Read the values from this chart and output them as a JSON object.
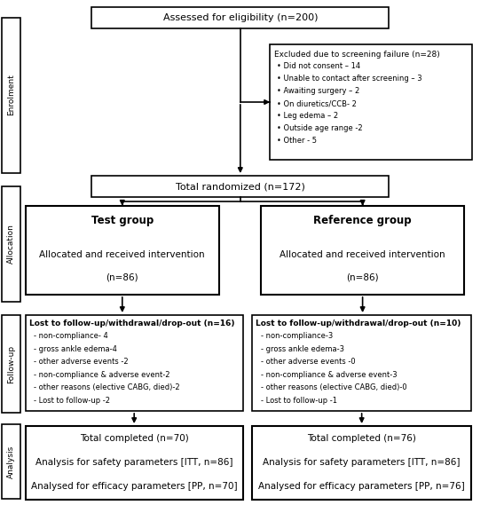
{
  "enrolment_label": "Enrolment",
  "allocation_label": "Allocation",
  "followup_label": "Follow-up",
  "analysis_label": "Analysis",
  "box_eligible": "Assessed for eligibility (n=200)",
  "box_excluded_title": "Excluded due to screening failure (n=28)",
  "box_excluded_bullets": [
    "Did not consent – 14",
    "Unable to contact after screening – 3",
    "Awaiting surgery – 2",
    "On diuretics/CCB- 2",
    "Leg edema – 2",
    "Outside age range -2",
    "Other - 5"
  ],
  "box_randomized": "Total randomized (n=172)",
  "box_test_title": "Test group",
  "box_ref_title": "Reference group",
  "box_alloc_body": "Allocated and received intervention",
  "box_alloc_n_left": "(n=86)",
  "box_alloc_n_right": "(n=86)",
  "box_followup_left_title": "Lost to follow-up/withdrawal/drop-out (n=16)",
  "box_followup_left_items": [
    "non-compliance- 4",
    "gross ankle edema-4",
    "other adverse events -2",
    "non-compliance & adverse event-2",
    "other reasons (elective CABG, died)-2",
    "Lost to follow-up -2"
  ],
  "box_followup_right_title": "Lost to follow-up/withdrawal/drop-out (n=10)",
  "box_followup_right_items": [
    "non-compliance-3",
    "gross ankle edema-3",
    "other adverse events -0",
    "non-compliance & adverse event-3",
    "other reasons (elective CABG, died)-0",
    "Lost to follow-up -1"
  ],
  "box_analysis_left_line1": "Total completed (n=70)",
  "box_analysis_left_line2": "Analysis for safety parameters [ITT, n=86]",
  "box_analysis_left_line3": "Analysed for efficacy parameters [PP, n=70]",
  "box_analysis_right_line1": "Total completed (n=76)",
  "box_analysis_right_line2": "Analysis for safety parameters [ITT, n=86]",
  "box_analysis_right_line3": "Analysed for efficacy parameters [PP, n=76]",
  "bg_color": "#ffffff",
  "box_edge_color": "#000000",
  "text_color": "#000000"
}
